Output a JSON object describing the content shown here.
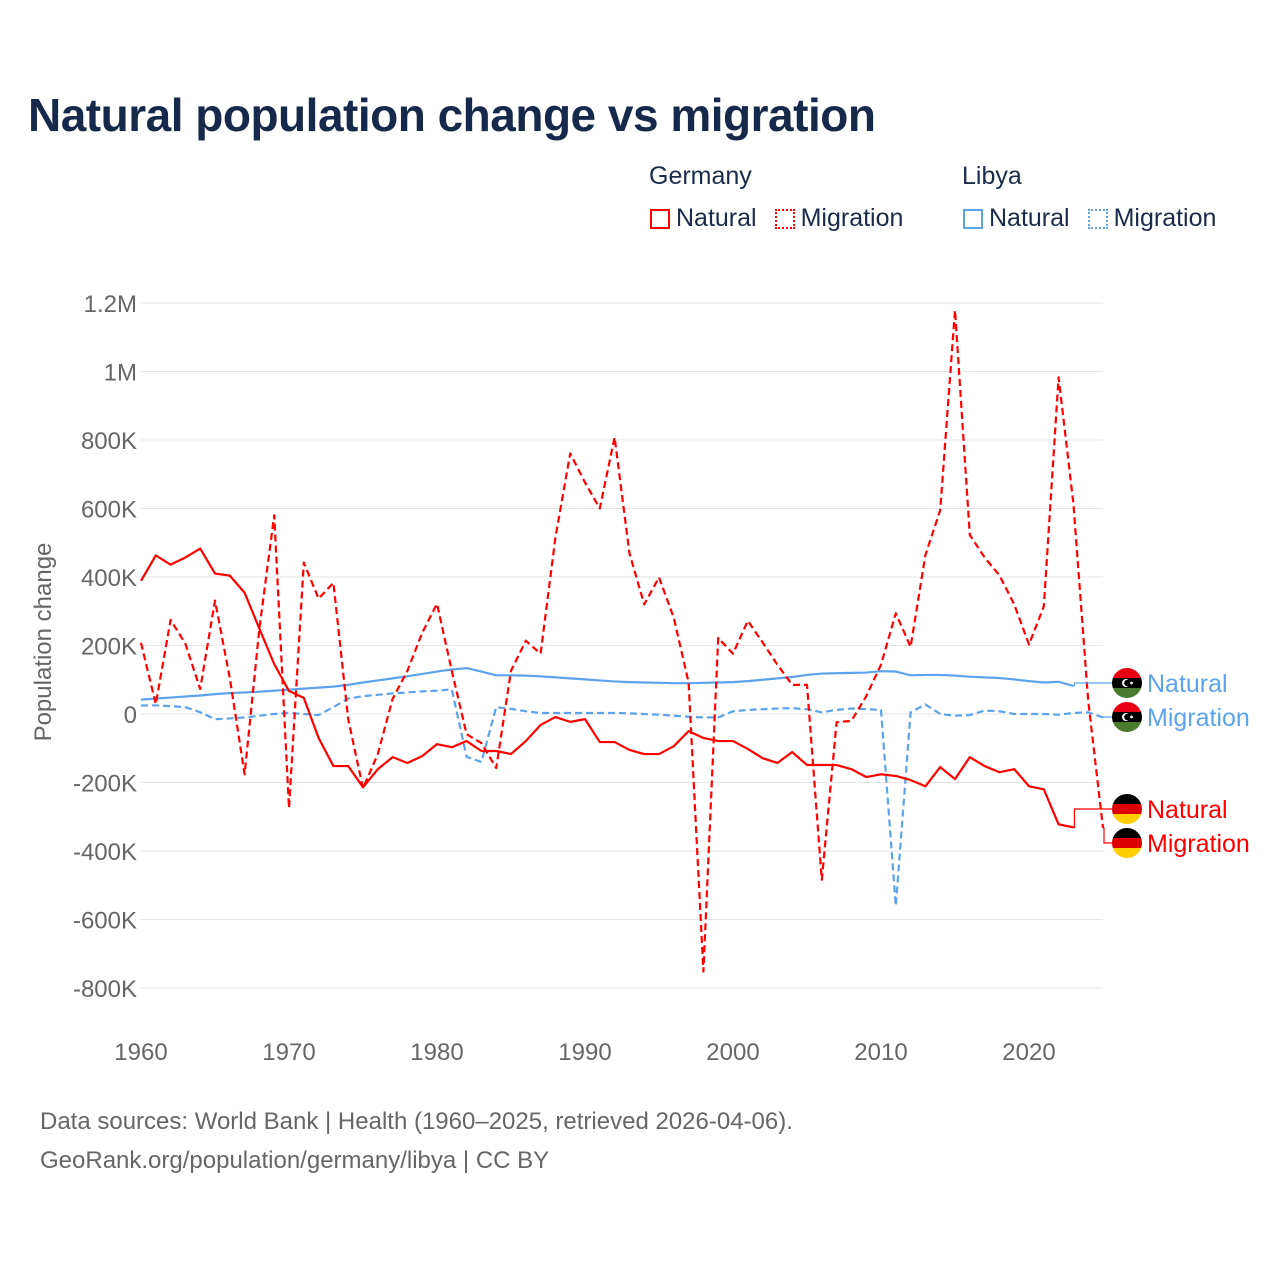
{
  "colors": {
    "germany": "#ff0000",
    "libya": "#5ca3eb",
    "grid": "#e6e6e6",
    "axis_text": "#666666"
  },
  "chart_data": {
    "type": "line",
    "title": "Natural population change vs migration",
    "xlabel": "",
    "ylabel": "Population change",
    "xlim": [
      1960,
      2025
    ],
    "ylim": [
      -800000,
      1200000
    ],
    "grid": true,
    "legend_placement": "top-right",
    "x_ticks": [
      1960,
      1970,
      1980,
      1990,
      2000,
      2010,
      2020
    ],
    "x_tick_labels": [
      "1960",
      "1970",
      "1980",
      "1990",
      "2000",
      "2010",
      "2020"
    ],
    "y_ticks": [
      -800000,
      -600000,
      -400000,
      -200000,
      0,
      200000,
      400000,
      600000,
      800000,
      1000000,
      1200000
    ],
    "y_tick_labels": [
      "-800K",
      "-600K",
      "-400K",
      "-200K",
      "0",
      "200K",
      "400K",
      "600K",
      "800K",
      "1M",
      "1.2M"
    ],
    "legend": {
      "groups": [
        {
          "name": "Germany",
          "items": [
            "Natural",
            "Migration"
          ]
        },
        {
          "name": "Libya",
          "items": [
            "Natural",
            "Migration"
          ]
        }
      ]
    },
    "series": [
      {
        "name": "Germany Natural",
        "country": "Germany",
        "kind": "Natural",
        "label": "Natural",
        "dash": false,
        "start_year": 1960,
        "values": [
          389000,
          463000,
          436000,
          457000,
          483000,
          410000,
          404000,
          354000,
          249000,
          146000,
          67000,
          47000,
          -70000,
          -152000,
          -152000,
          -214000,
          -161000,
          -126000,
          -143000,
          -123000,
          -88000,
          -97000,
          -79000,
          -108000,
          -108000,
          -117000,
          -79000,
          -32000,
          -9000,
          -23000,
          -15000,
          -82000,
          -82000,
          -105000,
          -117000,
          -117000,
          -94000,
          -50000,
          -70000,
          -79000,
          -79000,
          -102000,
          -129000,
          -143000,
          -111000,
          -149000,
          -149000,
          -149000,
          -161000,
          -184000,
          -176000,
          -181000,
          -193000,
          -211000,
          -155000,
          -190000,
          -126000,
          -152000,
          -170000,
          -161000,
          -211000,
          -220000,
          -322000,
          -331000
        ]
      },
      {
        "name": "Germany Migration",
        "country": "Germany",
        "kind": "Migration",
        "label": "Migration",
        "dash": true,
        "start_year": 1960,
        "values": [
          208000,
          29000,
          275000,
          205000,
          73000,
          331000,
          105000,
          -176000,
          250000,
          580000,
          -275000,
          442000,
          337000,
          383000,
          -15000,
          -217000,
          -117000,
          44000,
          126000,
          237000,
          322000,
          126000,
          -59000,
          -85000,
          -158000,
          126000,
          214000,
          176000,
          515000,
          761000,
          676000,
          600000,
          808000,
          470000,
          320000,
          399000,
          281000,
          92000,
          -752000,
          222000,
          176000,
          272000,
          209000,
          144000,
          85000,
          85000,
          -484000,
          -24000,
          -20000,
          52000,
          144000,
          294000,
          196000,
          464000,
          595000,
          1179000,
          523000,
          457000,
          405000,
          320000,
          203000,
          314000,
          983000,
          614000,
          39000,
          -333000
        ]
      },
      {
        "name": "Libya Natural",
        "country": "Libya",
        "kind": "Natural",
        "label": "Natural",
        "dash": false,
        "start_year": 1960,
        "values": [
          42000,
          45000,
          48000,
          51000,
          54000,
          58000,
          61000,
          63000,
          65000,
          68000,
          71000,
          74000,
          77000,
          80000,
          85000,
          92000,
          98000,
          104000,
          110000,
          117000,
          124000,
          130000,
          134000,
          124000,
          113000,
          113000,
          112000,
          110000,
          107000,
          104000,
          101000,
          98000,
          95000,
          93000,
          92000,
          91000,
          90000,
          90000,
          91000,
          92000,
          93000,
          96000,
          100000,
          104000,
          108000,
          114000,
          118000,
          119000,
          120000,
          121000,
          125000,
          124000,
          113000,
          114000,
          114000,
          112000,
          109000,
          107000,
          105000,
          101000,
          96000,
          92000,
          94000,
          82000
        ]
      },
      {
        "name": "Libya Migration",
        "country": "Libya",
        "kind": "Migration",
        "label": "Migration",
        "dash": true,
        "start_year": 1960,
        "values": [
          25000,
          25000,
          23000,
          20000,
          5000,
          -15000,
          -13000,
          -10000,
          -5000,
          0,
          3000,
          0,
          -3000,
          20000,
          45000,
          52000,
          56000,
          60000,
          63000,
          66000,
          68000,
          72000,
          -125000,
          -140000,
          20000,
          15000,
          8000,
          3000,
          3000,
          3000,
          3000,
          3000,
          3000,
          2000,
          0,
          -2000,
          -5000,
          -8000,
          -10000,
          -10000,
          8000,
          12000,
          14000,
          16000,
          17000,
          14000,
          5000,
          12000,
          16000,
          14000,
          12000,
          -560000,
          5000,
          28000,
          0,
          -5000,
          -3000,
          10000,
          8000,
          0,
          0,
          0,
          -2000,
          3000,
          5000,
          -10000
        ]
      }
    ]
  },
  "footer": {
    "line1": "Data sources: World Bank | Health (1960–2025, retrieved 2026-04-06).",
    "line2": "GeoRank.org/population/germany/libya | CC BY"
  }
}
